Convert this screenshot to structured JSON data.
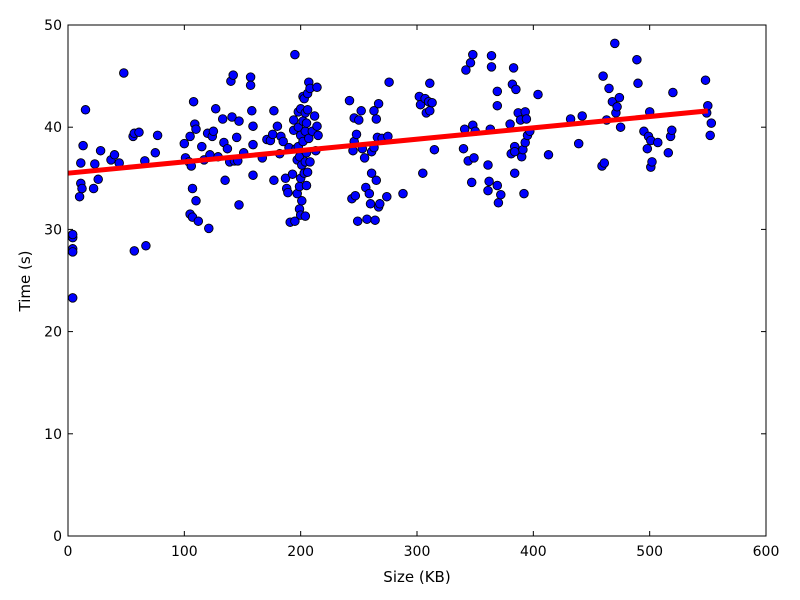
{
  "chart_data": {
    "type": "scatter",
    "title": "",
    "xlabel": "Size (KB)",
    "ylabel": "Time (s)",
    "xlim": [
      0,
      600
    ],
    "ylim": [
      0,
      50
    ],
    "xticks": [
      0,
      100,
      200,
      300,
      400,
      500,
      600
    ],
    "yticks": [
      0,
      10,
      20,
      30,
      40,
      50
    ],
    "grid": false,
    "point_color": "#0000ff",
    "point_edge_color": "#000000",
    "trend_color": "#ff0000",
    "trend_line": {
      "x": [
        0,
        550
      ],
      "y": [
        35.5,
        41.6
      ]
    },
    "points": [
      [
        4,
        23.3
      ],
      [
        4,
        29.2
      ],
      [
        4,
        29.5
      ],
      [
        4,
        28.1
      ],
      [
        4,
        27.8
      ],
      [
        10,
        33.2
      ],
      [
        11,
        34.5
      ],
      [
        11,
        36.5
      ],
      [
        12,
        34.0
      ],
      [
        13,
        38.2
      ],
      [
        15,
        41.7
      ],
      [
        22,
        34.0
      ],
      [
        23,
        36.4
      ],
      [
        26,
        34.9
      ],
      [
        28,
        37.7
      ],
      [
        37,
        36.8
      ],
      [
        40,
        37.3
      ],
      [
        44,
        36.5
      ],
      [
        48,
        45.3
      ],
      [
        56,
        39.1
      ],
      [
        57,
        39.4
      ],
      [
        57,
        27.9
      ],
      [
        61,
        39.5
      ],
      [
        66,
        36.7
      ],
      [
        67,
        28.4
      ],
      [
        75,
        37.5
      ],
      [
        77,
        39.2
      ],
      [
        100,
        38.4
      ],
      [
        101,
        37.0
      ],
      [
        104,
        36.6
      ],
      [
        105,
        39.1
      ],
      [
        105,
        31.5
      ],
      [
        106,
        36.2
      ],
      [
        107,
        31.2
      ],
      [
        107,
        34.0
      ],
      [
        108,
        42.5
      ],
      [
        109,
        40.3
      ],
      [
        110,
        39.8
      ],
      [
        110,
        32.8
      ],
      [
        112,
        30.8
      ],
      [
        115,
        38.1
      ],
      [
        117,
        36.8
      ],
      [
        120,
        39.4
      ],
      [
        121,
        30.1
      ],
      [
        122,
        37.3
      ],
      [
        124,
        39.1
      ],
      [
        125,
        39.6
      ],
      [
        127,
        41.8
      ],
      [
        129,
        37.1
      ],
      [
        133,
        40.8
      ],
      [
        134,
        38.5
      ],
      [
        135,
        34.8
      ],
      [
        137,
        37.9
      ],
      [
        139,
        36.6
      ],
      [
        140,
        44.5
      ],
      [
        141,
        41.0
      ],
      [
        142,
        45.1
      ],
      [
        143,
        36.7
      ],
      [
        145,
        39.0
      ],
      [
        146,
        36.7
      ],
      [
        147,
        40.6
      ],
      [
        147,
        32.4
      ],
      [
        151,
        37.5
      ],
      [
        157,
        44.9
      ],
      [
        157,
        44.1
      ],
      [
        158,
        41.6
      ],
      [
        159,
        40.1
      ],
      [
        159,
        38.3
      ],
      [
        159,
        35.3
      ],
      [
        167,
        37.0
      ],
      [
        171,
        38.8
      ],
      [
        174,
        38.7
      ],
      [
        176,
        39.3
      ],
      [
        177,
        41.6
      ],
      [
        177,
        34.8
      ],
      [
        180,
        40.1
      ],
      [
        182,
        37.4
      ],
      [
        183,
        39.1
      ],
      [
        185,
        38.6
      ],
      [
        187,
        35.0
      ],
      [
        188,
        34.0
      ],
      [
        189,
        33.6
      ],
      [
        190,
        38.0
      ],
      [
        191,
        30.7
      ],
      [
        193,
        35.4
      ],
      [
        194,
        40.7
      ],
      [
        194,
        39.7
      ],
      [
        195,
        47.1
      ],
      [
        195,
        30.8
      ],
      [
        196,
        37.9
      ],
      [
        197,
        36.8
      ],
      [
        197,
        33.5
      ],
      [
        198,
        41.5
      ],
      [
        198,
        40.0
      ],
      [
        198,
        38.1
      ],
      [
        199,
        37.1
      ],
      [
        199,
        34.2
      ],
      [
        199,
        32.0
      ],
      [
        200,
        41.8
      ],
      [
        200,
        39.2
      ],
      [
        200,
        35.0
      ],
      [
        200,
        31.4
      ],
      [
        201,
        36.3
      ],
      [
        201,
        32.8
      ],
      [
        202,
        43.0
      ],
      [
        202,
        40.6
      ],
      [
        202,
        38.6
      ],
      [
        203,
        42.8
      ],
      [
        203,
        35.5
      ],
      [
        204,
        41.4
      ],
      [
        204,
        39.6
      ],
      [
        204,
        36.6
      ],
      [
        204,
        31.3
      ],
      [
        205,
        40.4
      ],
      [
        205,
        37.5
      ],
      [
        205,
        34.3
      ],
      [
        206,
        43.3
      ],
      [
        206,
        41.7
      ],
      [
        206,
        35.6
      ],
      [
        207,
        44.4
      ],
      [
        207,
        38.9
      ],
      [
        208,
        43.8
      ],
      [
        208,
        36.6
      ],
      [
        210,
        39.6
      ],
      [
        212,
        41.1
      ],
      [
        213,
        37.7
      ],
      [
        214,
        43.9
      ],
      [
        214,
        40.1
      ],
      [
        215,
        39.2
      ],
      [
        242,
        42.6
      ],
      [
        244,
        33.0
      ],
      [
        245,
        37.7
      ],
      [
        246,
        40.9
      ],
      [
        246,
        38.6
      ],
      [
        247,
        33.3
      ],
      [
        248,
        39.3
      ],
      [
        249,
        30.8
      ],
      [
        250,
        40.7
      ],
      [
        252,
        41.6
      ],
      [
        253,
        37.9
      ],
      [
        255,
        37.0
      ],
      [
        256,
        34.1
      ],
      [
        257,
        31.0
      ],
      [
        259,
        33.5
      ],
      [
        260,
        32.5
      ],
      [
        261,
        37.6
      ],
      [
        261,
        35.5
      ],
      [
        263,
        38.0
      ],
      [
        263,
        41.6
      ],
      [
        264,
        30.9
      ],
      [
        265,
        34.8
      ],
      [
        265,
        40.8
      ],
      [
        266,
        39.0
      ],
      [
        267,
        42.3
      ],
      [
        267,
        32.2
      ],
      [
        268,
        32.5
      ],
      [
        270,
        38.9
      ],
      [
        274,
        33.2
      ],
      [
        275,
        39.1
      ],
      [
        276,
        44.4
      ],
      [
        288,
        33.5
      ],
      [
        302,
        43.0
      ],
      [
        303,
        42.2
      ],
      [
        305,
        35.5
      ],
      [
        307,
        42.8
      ],
      [
        308,
        41.4
      ],
      [
        310,
        42.5
      ],
      [
        311,
        44.3
      ],
      [
        311,
        41.6
      ],
      [
        313,
        42.4
      ],
      [
        315,
        37.8
      ],
      [
        340,
        37.9
      ],
      [
        341,
        39.8
      ],
      [
        342,
        45.6
      ],
      [
        344,
        36.7
      ],
      [
        346,
        46.3
      ],
      [
        347,
        34.6
      ],
      [
        348,
        47.1
      ],
      [
        348,
        40.2
      ],
      [
        349,
        37.0
      ],
      [
        350,
        39.6
      ],
      [
        361,
        36.3
      ],
      [
        361,
        33.8
      ],
      [
        362,
        34.7
      ],
      [
        363,
        39.8
      ],
      [
        364,
        47.0
      ],
      [
        364,
        45.9
      ],
      [
        369,
        34.3
      ],
      [
        369,
        43.5
      ],
      [
        369,
        42.1
      ],
      [
        370,
        32.6
      ],
      [
        372,
        33.4
      ],
      [
        380,
        40.3
      ],
      [
        381,
        37.4
      ],
      [
        382,
        44.2
      ],
      [
        383,
        45.8
      ],
      [
        384,
        38.1
      ],
      [
        384,
        37.6
      ],
      [
        384,
        35.5
      ],
      [
        385,
        43.7
      ],
      [
        387,
        41.4
      ],
      [
        389,
        40.7
      ],
      [
        390,
        37.1
      ],
      [
        391,
        37.8
      ],
      [
        392,
        33.5
      ],
      [
        393,
        41.5
      ],
      [
        393,
        38.5
      ],
      [
        394,
        40.8
      ],
      [
        395,
        39.2
      ],
      [
        397,
        39.6
      ],
      [
        404,
        43.2
      ],
      [
        413,
        37.3
      ],
      [
        432,
        40.8
      ],
      [
        439,
        38.4
      ],
      [
        442,
        41.1
      ],
      [
        459,
        36.2
      ],
      [
        460,
        45.0
      ],
      [
        461,
        36.5
      ],
      [
        463,
        40.7
      ],
      [
        465,
        43.8
      ],
      [
        468,
        42.5
      ],
      [
        470,
        48.2
      ],
      [
        471,
        41.4
      ],
      [
        472,
        42.0
      ],
      [
        474,
        42.9
      ],
      [
        475,
        40.0
      ],
      [
        489,
        46.6
      ],
      [
        490,
        44.3
      ],
      [
        495,
        39.6
      ],
      [
        498,
        37.9
      ],
      [
        499,
        39.1
      ],
      [
        500,
        41.5
      ],
      [
        501,
        38.7
      ],
      [
        501,
        36.1
      ],
      [
        502,
        36.6
      ],
      [
        507,
        38.5
      ],
      [
        516,
        37.5
      ],
      [
        518,
        39.1
      ],
      [
        519,
        39.7
      ],
      [
        520,
        43.4
      ],
      [
        548,
        44.6
      ],
      [
        549,
        41.4
      ],
      [
        550,
        42.1
      ],
      [
        552,
        39.2
      ],
      [
        553,
        40.4
      ]
    ]
  }
}
